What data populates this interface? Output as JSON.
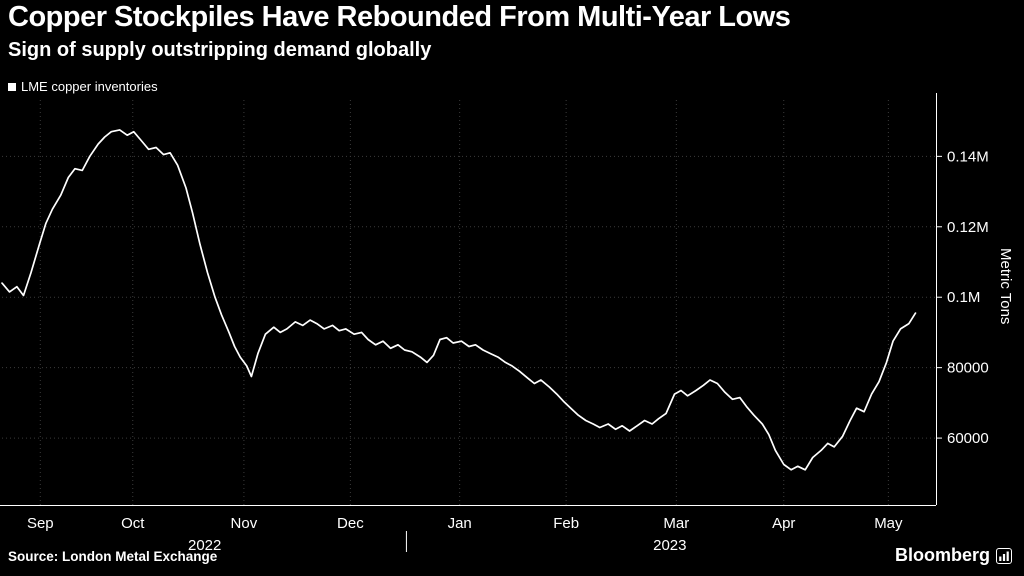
{
  "source": "Source: London Metal Exchange",
  "branding": "Bloomberg",
  "colors": {
    "background": "#000000",
    "line": "#ffffff",
    "grid": "#3b3b3b",
    "axis": "#ffffff",
    "text": "#ffffff",
    "legend_marker": "#ffffff"
  },
  "chart_data": {
    "type": "line",
    "title": "Copper Stockpiles Have Rebounded From Multi-Year Lows",
    "subtitle": "Sign of supply outstripping demand globally",
    "xlabel": "",
    "ylabel": "Metric Tons",
    "units": "metric tons",
    "grid": "dotted",
    "legend_position": "top-left",
    "ylim": [
      41000,
      156000
    ],
    "y_ticks": [
      {
        "value": 60000,
        "label": "60000"
      },
      {
        "value": 80000,
        "label": "80000"
      },
      {
        "value": 100000,
        "label": "0.1M"
      },
      {
        "value": 120000,
        "label": "0.12M"
      },
      {
        "value": 140000,
        "label": "0.14M"
      }
    ],
    "x_ticks": [
      {
        "label": "Sep",
        "x": 0.041
      },
      {
        "label": "Oct",
        "x": 0.14
      },
      {
        "label": "Nov",
        "x": 0.259
      },
      {
        "label": "Dec",
        "x": 0.373
      },
      {
        "label": "Jan",
        "x": 0.49
      },
      {
        "label": "Feb",
        "x": 0.604
      },
      {
        "label": "Mar",
        "x": 0.722
      },
      {
        "label": "Apr",
        "x": 0.837
      },
      {
        "label": "May",
        "x": 0.949
      }
    ],
    "year_labels": [
      {
        "label": "2022",
        "x": 0.217
      },
      {
        "label": "2023",
        "x": 0.715
      }
    ],
    "year_divider_x": 0.433,
    "series": [
      {
        "name": "LME copper inventories",
        "points": [
          [
            0.0,
            104000
          ],
          [
            0.008,
            101500
          ],
          [
            0.016,
            103000
          ],
          [
            0.023,
            100500
          ],
          [
            0.031,
            107000
          ],
          [
            0.04,
            115000
          ],
          [
            0.047,
            121000
          ],
          [
            0.054,
            125000
          ],
          [
            0.063,
            129000
          ],
          [
            0.071,
            134000
          ],
          [
            0.078,
            136500
          ],
          [
            0.086,
            136000
          ],
          [
            0.094,
            140000
          ],
          [
            0.103,
            143500
          ],
          [
            0.11,
            145500
          ],
          [
            0.117,
            147000
          ],
          [
            0.126,
            147500
          ],
          [
            0.134,
            146000
          ],
          [
            0.141,
            147000
          ],
          [
            0.149,
            144500
          ],
          [
            0.157,
            142000
          ],
          [
            0.165,
            142500
          ],
          [
            0.173,
            140500
          ],
          [
            0.18,
            141000
          ],
          [
            0.188,
            137500
          ],
          [
            0.197,
            131000
          ],
          [
            0.204,
            124000
          ],
          [
            0.212,
            115000
          ],
          [
            0.22,
            107000
          ],
          [
            0.228,
            100000
          ],
          [
            0.235,
            95000
          ],
          [
            0.243,
            90000
          ],
          [
            0.249,
            86000
          ],
          [
            0.255,
            83000
          ],
          [
            0.262,
            80500
          ],
          [
            0.267,
            77500
          ],
          [
            0.274,
            84000
          ],
          [
            0.282,
            89500
          ],
          [
            0.291,
            91500
          ],
          [
            0.298,
            90000
          ],
          [
            0.305,
            91000
          ],
          [
            0.314,
            93000
          ],
          [
            0.322,
            92000
          ],
          [
            0.33,
            93500
          ],
          [
            0.337,
            92500
          ],
          [
            0.345,
            91000
          ],
          [
            0.354,
            92000
          ],
          [
            0.361,
            90500
          ],
          [
            0.368,
            91000
          ],
          [
            0.377,
            89500
          ],
          [
            0.385,
            90000
          ],
          [
            0.392,
            88000
          ],
          [
            0.4,
            86500
          ],
          [
            0.408,
            87500
          ],
          [
            0.416,
            85500
          ],
          [
            0.424,
            86500
          ],
          [
            0.431,
            85000
          ],
          [
            0.439,
            84500
          ],
          [
            0.448,
            83000
          ],
          [
            0.455,
            81500
          ],
          [
            0.462,
            83500
          ],
          [
            0.469,
            88000
          ],
          [
            0.476,
            88500
          ],
          [
            0.483,
            87000
          ],
          [
            0.492,
            87500
          ],
          [
            0.5,
            86000
          ],
          [
            0.507,
            86500
          ],
          [
            0.515,
            85000
          ],
          [
            0.523,
            84000
          ],
          [
            0.531,
            83000
          ],
          [
            0.539,
            81500
          ],
          [
            0.546,
            80500
          ],
          [
            0.554,
            79000
          ],
          [
            0.563,
            77000
          ],
          [
            0.57,
            75500
          ],
          [
            0.577,
            76500
          ],
          [
            0.586,
            74500
          ],
          [
            0.594,
            72500
          ],
          [
            0.601,
            70500
          ],
          [
            0.609,
            68500
          ],
          [
            0.617,
            66500
          ],
          [
            0.625,
            65000
          ],
          [
            0.633,
            64000
          ],
          [
            0.64,
            63000
          ],
          [
            0.649,
            64000
          ],
          [
            0.657,
            62500
          ],
          [
            0.664,
            63500
          ],
          [
            0.672,
            62000
          ],
          [
            0.68,
            63500
          ],
          [
            0.688,
            65000
          ],
          [
            0.696,
            64000
          ],
          [
            0.703,
            65500
          ],
          [
            0.711,
            67000
          ],
          [
            0.72,
            72500
          ],
          [
            0.727,
            73500
          ],
          [
            0.734,
            72000
          ],
          [
            0.743,
            73500
          ],
          [
            0.751,
            75000
          ],
          [
            0.758,
            76500
          ],
          [
            0.766,
            75500
          ],
          [
            0.774,
            73000
          ],
          [
            0.782,
            71000
          ],
          [
            0.79,
            71500
          ],
          [
            0.797,
            69000
          ],
          [
            0.805,
            66500
          ],
          [
            0.814,
            64000
          ],
          [
            0.821,
            61000
          ],
          [
            0.828,
            56500
          ],
          [
            0.837,
            52500
          ],
          [
            0.845,
            51000
          ],
          [
            0.852,
            52000
          ],
          [
            0.86,
            51000
          ],
          [
            0.868,
            54500
          ],
          [
            0.877,
            56500
          ],
          [
            0.884,
            58500
          ],
          [
            0.891,
            57500
          ],
          [
            0.9,
            60500
          ],
          [
            0.908,
            65000
          ],
          [
            0.915,
            68500
          ],
          [
            0.923,
            67500
          ],
          [
            0.931,
            72500
          ],
          [
            0.939,
            76000
          ],
          [
            0.947,
            81500
          ],
          [
            0.954,
            87500
          ],
          [
            0.962,
            91000
          ],
          [
            0.971,
            92500
          ],
          [
            0.978,
            95500
          ]
        ]
      }
    ]
  }
}
